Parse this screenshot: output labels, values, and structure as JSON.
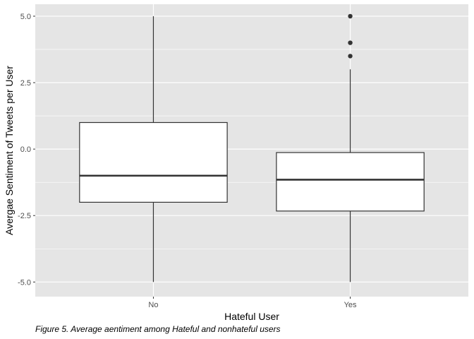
{
  "caption": "Figure 5. Average aentiment among Hateful and nonhateful users",
  "colors": {
    "panel_background": "#e5e5e5",
    "grid": "#ffffff",
    "box_fill": "#ffffff",
    "box_line": "#333333",
    "outlier": "#333333",
    "tick_label": "#4d4d4d"
  },
  "chart_data": {
    "type": "boxplot",
    "title": "",
    "xlabel": "Hateful User",
    "ylabel": "Avergae Sentiment of Tweets per User",
    "categories": [
      "No",
      "Yes"
    ],
    "ylim": [
      -5.55,
      5.45
    ],
    "y_ticks": [
      -5,
      -2.5,
      0,
      2.5,
      5
    ],
    "y_tick_labels": [
      "-5.0",
      "-2.5",
      "0.0",
      "2.5",
      "5.0"
    ],
    "grid": true,
    "legend": "none",
    "boxes": [
      {
        "category": "No",
        "min": -5.0,
        "q1": -2.0,
        "median": -1.0,
        "q3": 1.0,
        "max": 5.0,
        "outliers": []
      },
      {
        "category": "Yes",
        "min": -5.0,
        "q1": -2.33,
        "median": -1.15,
        "q3": -0.13,
        "max": 3.0,
        "outliers": [
          3.5,
          4.0,
          5.0
        ]
      }
    ]
  }
}
